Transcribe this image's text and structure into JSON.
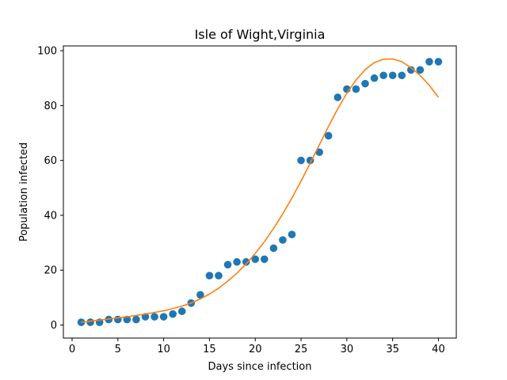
{
  "chart_data": {
    "type": "scatter",
    "title": "Isle of Wight,Virginia",
    "xlabel": "Days since infection",
    "ylabel": "Population infected",
    "xlim": [
      -0.95,
      41.95
    ],
    "ylim": [
      -4.75,
      101.75
    ],
    "xticks": [
      0,
      5,
      10,
      15,
      20,
      25,
      30,
      35,
      40
    ],
    "yticks": [
      0,
      20,
      40,
      60,
      80,
      100
    ],
    "grid": false,
    "series": [
      {
        "kind": "scatter",
        "color": "#1f77b4",
        "x": [
          1,
          2,
          3,
          4,
          5,
          6,
          7,
          8,
          9,
          10,
          11,
          12,
          13,
          14,
          15,
          16,
          17,
          18,
          19,
          20,
          21,
          22,
          23,
          24,
          25,
          26,
          27,
          28,
          29,
          30,
          31,
          32,
          33,
          34,
          35,
          36,
          37,
          38,
          39,
          40
        ],
        "y": [
          1,
          1,
          1,
          2,
          2,
          2,
          2,
          3,
          3,
          3,
          4,
          5,
          8,
          11,
          18,
          18,
          22,
          23,
          23,
          24,
          24,
          28,
          31,
          33,
          60,
          60,
          63,
          69,
          83,
          86,
          86,
          88,
          90,
          91,
          91,
          91,
          93,
          93,
          96,
          96
        ]
      },
      {
        "kind": "line",
        "color": "#ff7f0e",
        "x": [
          1,
          2,
          3,
          4,
          5,
          6,
          7,
          8,
          9,
          10,
          11,
          12,
          13,
          14,
          15,
          16,
          17,
          18,
          19,
          20,
          21,
          22,
          23,
          24,
          25,
          26,
          27,
          28,
          29,
          30,
          31,
          32,
          33,
          34,
          35,
          36,
          37,
          38,
          39,
          40
        ],
        "y": [
          1.0,
          1.4,
          1.8,
          2.2,
          2.6,
          3.0,
          3.5,
          4.0,
          4.6,
          5.2,
          6.0,
          6.9,
          8.0,
          9.5,
          11.3,
          13.4,
          16.0,
          18.9,
          22.3,
          26.1,
          30.4,
          35.2,
          40.5,
          46.3,
          52.5,
          59.0,
          65.7,
          72.4,
          78.8,
          84.5,
          89.3,
          93.1,
          95.7,
          96.9,
          97.0,
          96.0,
          93.8,
          91.0,
          87.4,
          83.0
        ]
      }
    ]
  }
}
